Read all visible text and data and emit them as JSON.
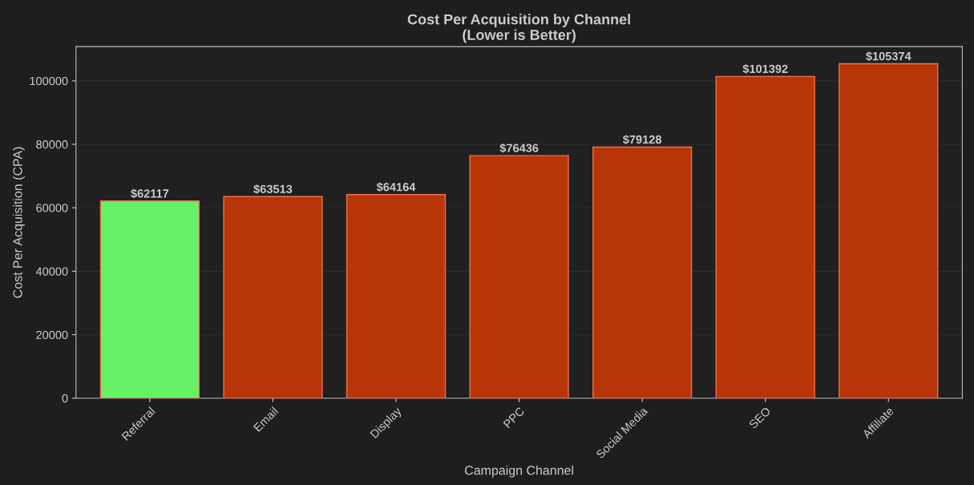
{
  "chart_data": {
    "type": "bar",
    "title": "Cost Per Acquisition by Channel\n(Lower is Better)",
    "xlabel": "Campaign Channel",
    "ylabel": "Cost Per Acquisition (CPA)",
    "categories": [
      "Referral",
      "Email",
      "Display",
      "PPC",
      "Social Media",
      "SEO",
      "Affiliate"
    ],
    "values": [
      62117,
      63513,
      64164,
      76436,
      79128,
      101392,
      105374
    ],
    "colors": [
      "#66f266",
      "#b83508",
      "#b83508",
      "#b83508",
      "#b83508",
      "#b83508",
      "#b83508"
    ],
    "value_labels": [
      "$62117",
      "$63513",
      "$64164",
      "$76436",
      "$79128",
      "$101392",
      "$105374"
    ],
    "ylim": [
      0,
      110800
    ],
    "yticks": [
      0,
      20000,
      40000,
      60000,
      80000,
      100000
    ],
    "grid": "y"
  }
}
